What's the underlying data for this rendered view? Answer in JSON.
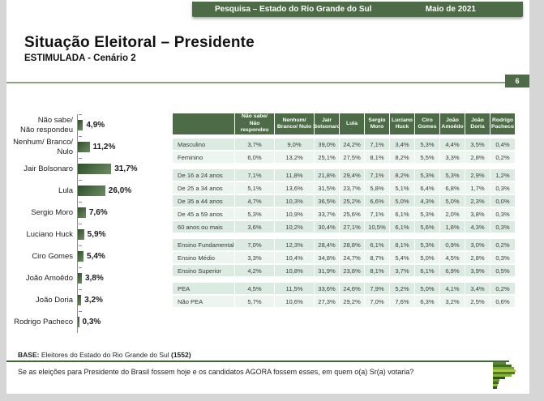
{
  "banner": {
    "left": "Pesquisa – Estado do Rio Grande do Sul",
    "right": "Maio de 2021"
  },
  "title": "Situação Eleitoral – Presidente",
  "subtitle": "ESTIMULADA - Cenário 2",
  "page_number": "6",
  "colors": {
    "header_green": "#4e6b48",
    "rule_green": "#3c6b33",
    "bar_green": "#4c6a44",
    "row_shade_dark": "#dcebe2",
    "row_shade_light": "#edf5f0"
  },
  "chart_data": [
    {
      "type": "bar",
      "orientation": "horizontal",
      "title": "Situação Eleitoral – Presidente (ESTIMULADA - Cenário 2)",
      "categories": [
        "Não sabe/\nNão respondeu",
        "Nenhum/ Branco/\nNulo",
        "Jair Bolsonaro",
        "Lula",
        "Sergio Moro",
        "Luciano Huck",
        "Ciro Gomes",
        "João Amoêdo",
        "João Doria",
        "Rodrigo Pacheco"
      ],
      "values": [
        4.9,
        11.2,
        31.7,
        26.0,
        7.6,
        5.9,
        5.4,
        3.8,
        3.2,
        0.3
      ],
      "value_labels": [
        "4,9%",
        "11,2%",
        "31,7%",
        "26,0%",
        "7,6%",
        "5,9%",
        "5,4%",
        "3,8%",
        "3,2%",
        "0,3%"
      ],
      "xlim": [
        0,
        35
      ],
      "grid": false,
      "legend": false
    },
    {
      "type": "table",
      "columns": [
        "",
        "Não sabe/ Não respondeu",
        "Nenhum/ Branco/ Nulo",
        "Jair Bolsonaro",
        "Lula",
        "Sergio Moro",
        "Luciano Huck",
        "Ciro Gomes",
        "João Amoêdo",
        "João Doria",
        "Rodrigo Pacheco"
      ],
      "groups": [
        [
          {
            "label": "Masculino",
            "values": [
              "3,7%",
              "9,0%",
              "39,0%",
              "24,2%",
              "7,1%",
              "3,4%",
              "5,3%",
              "4,4%",
              "3,5%",
              "0,4%"
            ]
          },
          {
            "label": "Feminino",
            "values": [
              "6,0%",
              "13,2%",
              "25,1%",
              "27,5%",
              "8,1%",
              "8,2%",
              "5,5%",
              "3,3%",
              "2,8%",
              "0,2%"
            ]
          }
        ],
        [
          {
            "label": "De 16 a 24 anos",
            "values": [
              "7,1%",
              "11,8%",
              "21,8%",
              "29,4%",
              "7,1%",
              "8,2%",
              "5,3%",
              "5,3%",
              "2,9%",
              "1,2%"
            ]
          },
          {
            "label": "De 25 a 34 anos",
            "values": [
              "5,1%",
              "13,6%",
              "31,5%",
              "23,7%",
              "5,8%",
              "5,1%",
              "6,4%",
              "6,8%",
              "1,7%",
              "0,3%"
            ]
          },
          {
            "label": "De 35 a 44 anos",
            "values": [
              "4,7%",
              "10,3%",
              "36,5%",
              "25,2%",
              "6,6%",
              "5,0%",
              "4,3%",
              "5,0%",
              "2,3%",
              "0,0%"
            ]
          },
          {
            "label": "De 45 a 59 anos",
            "values": [
              "5,3%",
              "10,9%",
              "33,7%",
              "25,6%",
              "7,1%",
              "6,1%",
              "5,3%",
              "2,0%",
              "3,8%",
              "0,3%"
            ]
          },
          {
            "label": "60 anos ou mais",
            "values": [
              "3,6%",
              "10,2%",
              "30,4%",
              "27,1%",
              "10,5%",
              "6,1%",
              "5,6%",
              "1,8%",
              "4,3%",
              "0,3%"
            ]
          }
        ],
        [
          {
            "label": "Ensino Fundamental",
            "values": [
              "7,0%",
              "12,3%",
              "28,4%",
              "28,8%",
              "6,1%",
              "8,1%",
              "5,3%",
              "0,9%",
              "3,0%",
              "0,2%"
            ]
          },
          {
            "label": "Ensino Médio",
            "values": [
              "3,3%",
              "10,4%",
              "34,8%",
              "24,7%",
              "8,7%",
              "5,4%",
              "5,0%",
              "4,5%",
              "2,8%",
              "0,3%"
            ]
          },
          {
            "label": "Ensino Superior",
            "values": [
              "4,2%",
              "10,8%",
              "31,9%",
              "23,8%",
              "8,1%",
              "3,7%",
              "6,1%",
              "6,9%",
              "3,9%",
              "0,5%"
            ]
          }
        ],
        [
          {
            "label": "PEA",
            "values": [
              "4,5%",
              "11,5%",
              "33,6%",
              "24,6%",
              "7,9%",
              "5,2%",
              "5,0%",
              "4,1%",
              "3,4%",
              "0,2%"
            ]
          },
          {
            "label": "Não PEA",
            "values": [
              "5,7%",
              "10,6%",
              "27,3%",
              "29,2%",
              "7,0%",
              "7,6%",
              "6,3%",
              "3,2%",
              "2,5%",
              "0,6%"
            ]
          }
        ]
      ]
    }
  ],
  "base": {
    "prefix": "BASE:",
    "text": " Eleitores do Estado do Rio Grande do Sul ",
    "count": "(1552)"
  },
  "question": "Se as eleições para Presidente do Brasil fossem hoje e os candidatos AGORA fossem esses, em quem o(a) Sr(a) votaria?"
}
